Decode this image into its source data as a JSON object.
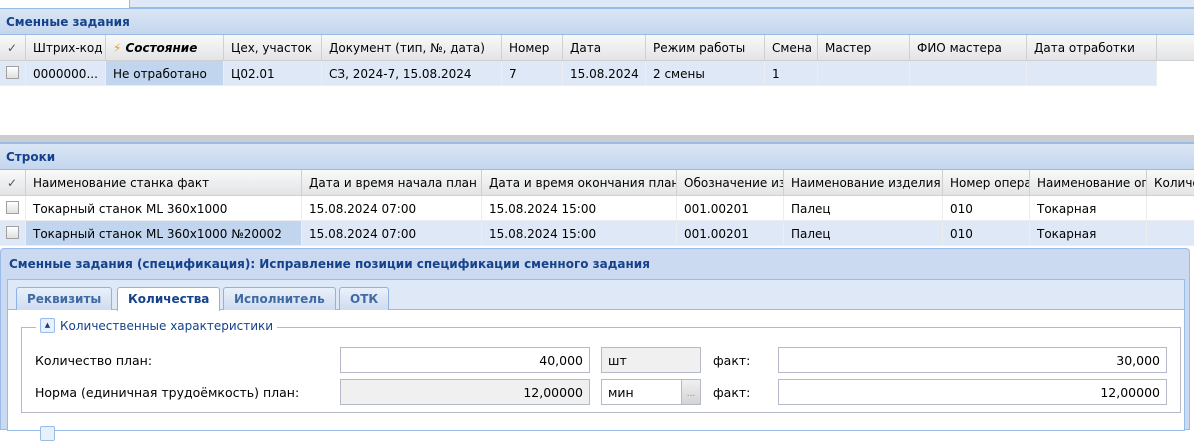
{
  "top_panel": {
    "title": "Сменные задания",
    "columns": [
      "Штрих-код",
      "Состояние",
      "Цех, участок",
      "Документ (тип, №, дата)",
      "Номер",
      "Дата",
      "Режим работы",
      "Смена",
      "Мастер",
      "ФИО мастера",
      "Дата отработки"
    ],
    "rows": [
      [
        "0000000...",
        "Не отработано",
        "Ц02.01",
        "СЗ, 2024-7, 15.08.2024",
        "7",
        "15.08.2024",
        "2 смены",
        "1",
        "",
        "",
        ""
      ]
    ]
  },
  "bottom_panel": {
    "title": "Строки",
    "columns": [
      "Наименование станка факт",
      "Дата и время начала план",
      "Дата и время окончания план...",
      "Обозначение изд",
      "Наименование изделия",
      "Номер опера",
      "Наименование опе",
      "Количе"
    ],
    "rows": [
      [
        "Токарный станок ML 360x1000",
        "15.08.2024 07:00",
        "15.08.2024 15:00",
        "001.00201",
        "Палец",
        "010",
        "Токарная",
        ""
      ],
      [
        "Токарный станок ML 360x1000 №20002",
        "15.08.2024 07:00",
        "15.08.2024 15:00",
        "001.00201",
        "Палец",
        "010",
        "Токарная",
        ""
      ]
    ]
  },
  "dialog": {
    "title": "Сменные задания (спецификация): Исправление позиции спецификации сменного задания",
    "tabs": [
      "Реквизиты",
      "Количества",
      "Исполнитель",
      "ОТК"
    ],
    "active_tab": "Количества",
    "section": "Количественные характеристики",
    "qty_label": "Количество план:",
    "qty_plan": "40,000",
    "qty_unit": "шт",
    "qty_fact_label": "факт:",
    "qty_fact": "30,000",
    "norm_label": "Норма (единичная трудоёмкость) план:",
    "norm_plan": "12,00000",
    "norm_unit": "мин",
    "norm_fact_label": "факт:",
    "norm_fact": "12,00000",
    "unit_trigger": "..."
  },
  "colors": {
    "header_text": "#15428b",
    "selected_row": "#dfe8f6",
    "selected_cell": "#c1d5ee"
  }
}
